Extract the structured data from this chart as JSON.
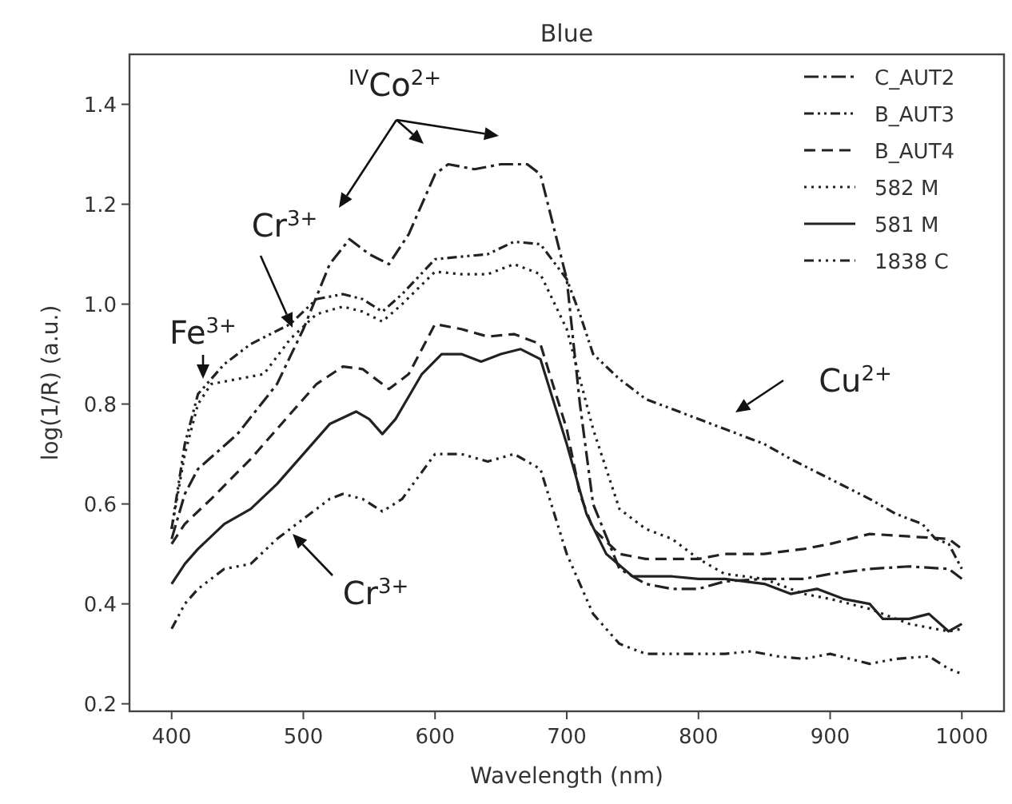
{
  "chart_data": {
    "type": "line",
    "title": "Blue",
    "xlabel": "Wavelength (nm)",
    "ylabel": "log(1/R) (a.u.)",
    "xlim": [
      368,
      1032
    ],
    "ylim": [
      0.185,
      1.5
    ],
    "xticks": [
      400,
      500,
      600,
      700,
      800,
      900,
      1000
    ],
    "yticks": [
      {
        "value": 0.2,
        "label": "0.2"
      },
      {
        "value": 0.4,
        "label": "0.4"
      },
      {
        "value": 0.6,
        "label": "0.6"
      },
      {
        "value": 0.8,
        "label": "0.8"
      },
      {
        "value": 1.0,
        "label": "1.0"
      },
      {
        "value": 1.2,
        "label": "1.2"
      },
      {
        "value": 1.4,
        "label": "1.4"
      }
    ],
    "grid": false,
    "legend": "top right",
    "marker": "none",
    "series": [
      {
        "name": "C_AUT2",
        "color": "#222222",
        "line_style": "dashdot",
        "x": [
          400,
          410,
          420,
          450,
          480,
          500,
          520,
          535,
          550,
          565,
          580,
          600,
          610,
          630,
          650,
          670,
          680,
          700,
          710,
          720,
          740,
          760,
          780,
          800,
          820,
          850,
          880,
          900,
          930,
          960,
          990,
          1000
        ],
        "values": [
          0.53,
          0.62,
          0.67,
          0.74,
          0.84,
          0.95,
          1.08,
          1.13,
          1.1,
          1.08,
          1.14,
          1.26,
          1.28,
          1.27,
          1.28,
          1.28,
          1.26,
          1.05,
          0.8,
          0.6,
          0.47,
          0.44,
          0.43,
          0.43,
          0.445,
          0.45,
          0.45,
          0.46,
          0.47,
          0.475,
          0.47,
          0.45
        ]
      },
      {
        "name": "B_AUT3",
        "color": "#222222",
        "line_style": "dashdotdot",
        "x": [
          400,
          410,
          420,
          440,
          460,
          490,
          510,
          530,
          545,
          560,
          575,
          600,
          620,
          640,
          660,
          680,
          700,
          710,
          720,
          740,
          760,
          780,
          800,
          820,
          850,
          870,
          900,
          930,
          950,
          970,
          980,
          990,
          1000
        ],
        "values": [
          0.55,
          0.72,
          0.82,
          0.88,
          0.92,
          0.96,
          1.01,
          1.02,
          1.01,
          0.985,
          1.02,
          1.09,
          1.095,
          1.1,
          1.125,
          1.12,
          1.05,
          0.98,
          0.9,
          0.85,
          0.81,
          0.79,
          0.77,
          0.75,
          0.72,
          0.69,
          0.65,
          0.61,
          0.58,
          0.56,
          0.53,
          0.52,
          0.47
        ]
      },
      {
        "name": "B_AUT4",
        "color": "#222222",
        "line_style": "dashed",
        "x": [
          400,
          410,
          430,
          460,
          490,
          510,
          530,
          545,
          565,
          580,
          600,
          620,
          640,
          660,
          680,
          700,
          710,
          720,
          740,
          760,
          780,
          800,
          820,
          850,
          880,
          900,
          930,
          960,
          990,
          1000
        ],
        "values": [
          0.52,
          0.56,
          0.61,
          0.69,
          0.78,
          0.84,
          0.875,
          0.87,
          0.83,
          0.86,
          0.96,
          0.95,
          0.935,
          0.94,
          0.92,
          0.75,
          0.62,
          0.55,
          0.5,
          0.49,
          0.49,
          0.49,
          0.5,
          0.5,
          0.51,
          0.52,
          0.54,
          0.535,
          0.53,
          0.51
        ]
      },
      {
        "name": "582 M",
        "color": "#222222",
        "line_style": "dotted",
        "x": [
          400,
          410,
          420,
          430,
          450,
          470,
          490,
          510,
          530,
          545,
          560,
          575,
          600,
          620,
          640,
          660,
          680,
          700,
          720,
          740,
          760,
          780,
          800,
          820,
          850,
          880,
          900,
          930,
          960,
          990,
          1000
        ],
        "values": [
          0.55,
          0.7,
          0.8,
          0.84,
          0.85,
          0.86,
          0.93,
          0.98,
          0.995,
          0.985,
          0.965,
          1.0,
          1.065,
          1.06,
          1.06,
          1.08,
          1.06,
          0.95,
          0.75,
          0.59,
          0.55,
          0.53,
          0.49,
          0.46,
          0.45,
          0.42,
          0.41,
          0.39,
          0.36,
          0.345,
          0.35
        ]
      },
      {
        "name": "581 M",
        "color": "#222222",
        "line_style": "solid",
        "x": [
          400,
          410,
          420,
          440,
          460,
          480,
          500,
          520,
          540,
          550,
          560,
          570,
          590,
          605,
          620,
          635,
          650,
          665,
          680,
          700,
          715,
          730,
          750,
          780,
          800,
          820,
          850,
          870,
          890,
          910,
          930,
          940,
          960,
          975,
          990,
          1000
        ],
        "values": [
          0.44,
          0.48,
          0.51,
          0.56,
          0.59,
          0.64,
          0.7,
          0.76,
          0.785,
          0.77,
          0.74,
          0.77,
          0.86,
          0.9,
          0.9,
          0.885,
          0.9,
          0.91,
          0.89,
          0.72,
          0.58,
          0.5,
          0.455,
          0.455,
          0.45,
          0.45,
          0.44,
          0.42,
          0.43,
          0.41,
          0.4,
          0.37,
          0.37,
          0.38,
          0.345,
          0.36
        ]
      },
      {
        "name": "1838 C",
        "color": "#222222",
        "line_style": "longdashdots",
        "x": [
          400,
          410,
          420,
          440,
          460,
          480,
          500,
          520,
          530,
          545,
          560,
          575,
          600,
          620,
          640,
          660,
          680,
          700,
          720,
          740,
          760,
          780,
          800,
          820,
          840,
          860,
          880,
          900,
          930,
          950,
          975,
          990,
          1000
        ],
        "values": [
          0.35,
          0.4,
          0.43,
          0.47,
          0.48,
          0.53,
          0.57,
          0.61,
          0.62,
          0.61,
          0.585,
          0.61,
          0.7,
          0.7,
          0.685,
          0.7,
          0.67,
          0.5,
          0.38,
          0.32,
          0.3,
          0.3,
          0.3,
          0.3,
          0.305,
          0.295,
          0.29,
          0.3,
          0.28,
          0.29,
          0.295,
          0.27,
          0.26
        ]
      }
    ],
    "annotations": [
      "$^{IV}$Co$^{2+}$",
      "Cr$^{3+}$",
      "Fe$^{3+}$",
      "Cu$^{2+}$",
      "Cr$^{3+}$"
    ]
  }
}
